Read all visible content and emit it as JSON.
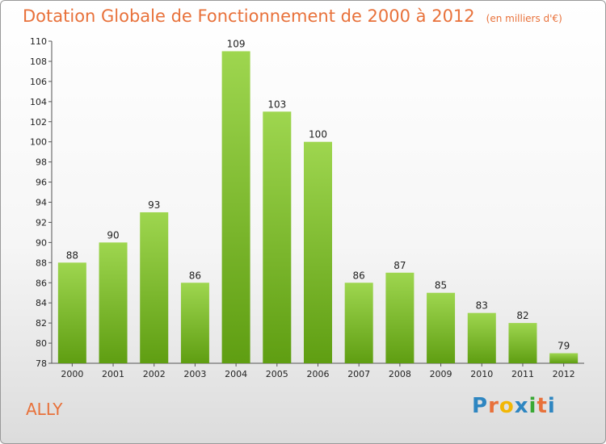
{
  "title": "Dotation Globale de Fonctionnement de 2000 à 2012",
  "unit": "(en milliers d'€)",
  "place": "ALLY",
  "logo": {
    "letters": [
      "P",
      "r",
      "o",
      "x",
      "i",
      "t",
      "i"
    ],
    "colors": [
      "#2e86c1",
      "#e8713a",
      "#f2b705",
      "#2e86c1",
      "#3aa935",
      "#e8713a",
      "#2e86c1"
    ]
  },
  "colors": {
    "bar_top": "#9ed64f",
    "bar_bottom": "#5f9e12",
    "title": "#e8713a"
  },
  "chart_data": {
    "type": "bar",
    "title": "Dotation Globale de Fonctionnement de 2000 à 2012",
    "subtitle": "(en milliers d'€)",
    "categories": [
      "2000",
      "2001",
      "2002",
      "2003",
      "2004",
      "2005",
      "2006",
      "2007",
      "2008",
      "2009",
      "2010",
      "2011",
      "2012"
    ],
    "values": [
      88,
      90,
      93,
      86,
      109,
      103,
      100,
      86,
      87,
      85,
      83,
      82,
      79
    ],
    "ylim": [
      78,
      110
    ],
    "yticks": [
      78,
      80,
      82,
      84,
      86,
      88,
      90,
      92,
      94,
      96,
      98,
      100,
      102,
      104,
      106,
      108,
      110
    ],
    "grid": false,
    "data_labels": true
  }
}
